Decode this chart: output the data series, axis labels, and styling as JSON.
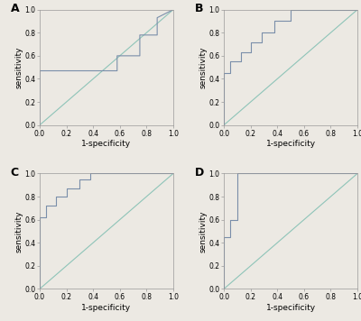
{
  "background_color": "#ece9e3",
  "roc_color": "#7a8eaa",
  "diag_color": "#8ec4b8",
  "panel_labels": [
    "A",
    "B",
    "C",
    "D"
  ],
  "xlabel": "1-specificity",
  "ylabel": "sensitivity",
  "tick_fontsize": 5.5,
  "label_fontsize": 6.5,
  "panel_label_fontsize": 9,
  "roc_curves": [
    {
      "fpr": [
        0.0,
        0.0,
        0.58,
        0.58,
        0.75,
        0.75,
        0.88,
        0.88,
        1.0
      ],
      "tpr": [
        0.0,
        0.47,
        0.47,
        0.6,
        0.6,
        0.78,
        0.78,
        0.93,
        1.0
      ]
    },
    {
      "fpr": [
        0.0,
        0.0,
        0.05,
        0.05,
        0.13,
        0.13,
        0.2,
        0.2,
        0.28,
        0.28,
        0.38,
        0.38,
        0.5,
        0.5,
        1.0
      ],
      "tpr": [
        0.0,
        0.45,
        0.45,
        0.55,
        0.55,
        0.63,
        0.63,
        0.72,
        0.72,
        0.8,
        0.8,
        0.9,
        0.9,
        1.0,
        1.0
      ]
    },
    {
      "fpr": [
        0.0,
        0.0,
        0.05,
        0.05,
        0.12,
        0.12,
        0.2,
        0.2,
        0.3,
        0.3,
        0.38,
        0.38,
        0.42,
        0.42,
        1.0
      ],
      "tpr": [
        0.0,
        0.62,
        0.62,
        0.72,
        0.72,
        0.8,
        0.8,
        0.87,
        0.87,
        0.95,
        0.95,
        1.0,
        1.0,
        1.0,
        1.0
      ]
    },
    {
      "fpr": [
        0.0,
        0.0,
        0.05,
        0.05,
        0.1,
        0.1,
        1.0
      ],
      "tpr": [
        0.0,
        0.45,
        0.45,
        0.6,
        0.6,
        1.0,
        1.0
      ]
    }
  ]
}
